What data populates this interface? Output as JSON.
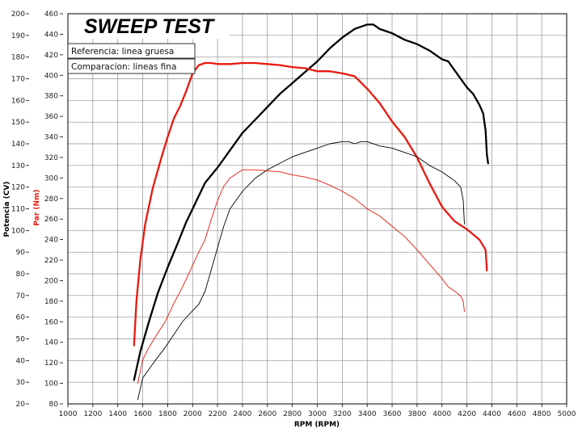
{
  "chart_data": {
    "type": "line",
    "title": "SWEEP TEST",
    "xlabel": "RPM (RPM)",
    "ylabel_left": "Potencia (CV)",
    "ylabel_right": "Par (Nm)",
    "xlim": [
      1000,
      5000
    ],
    "xticks": [
      "1000",
      "1200",
      "1400",
      "1600",
      "1800",
      "2000",
      "2200",
      "2400",
      "2600",
      "2800",
      "3000",
      "3200",
      "3400",
      "3600",
      "3800",
      "4000",
      "4200",
      "4400",
      "4600",
      "4800",
      "5000"
    ],
    "ylim_left": [
      20,
      200
    ],
    "yticks_left": [
      "20",
      "30",
      "40",
      "50",
      "60",
      "70",
      "80",
      "90",
      "100",
      "110",
      "120",
      "130",
      "140",
      "150",
      "160",
      "170",
      "180",
      "190",
      "200"
    ],
    "ylim_right": [
      80,
      460
    ],
    "yticks_right": [
      "80",
      "100",
      "120",
      "140",
      "160",
      "180",
      "200",
      "220",
      "240",
      "260",
      "280",
      "300",
      "320",
      "340",
      "360",
      "380",
      "400",
      "420",
      "440",
      "460"
    ],
    "grid": true,
    "legend": [
      "Referencia: linea gruesa",
      "Comparacion: lineas fina"
    ],
    "colors": {
      "power": "#000000",
      "torque": "#e8190f"
    },
    "series": [
      {
        "name": "Referencia: linea gruesa",
        "quantity": "power",
        "axis": "left",
        "width": "thick",
        "x": [
          1530,
          1580,
          1650,
          1720,
          1800,
          1880,
          1950,
          2000,
          2050,
          2100,
          2200,
          2300,
          2400,
          2500,
          2600,
          2700,
          2800,
          2900,
          3000,
          3100,
          3200,
          3300,
          3350,
          3400,
          3450,
          3500,
          3550,
          3600,
          3700,
          3800,
          3900,
          4000,
          4050,
          4100,
          4150,
          4200,
          4250,
          4300,
          4330,
          4350,
          4360,
          4370
        ],
        "y": [
          31,
          44,
          58,
          71,
          83,
          94,
          104,
          110,
          116,
          122,
          129,
          137,
          145,
          151,
          157,
          163,
          168,
          173,
          178,
          184,
          189,
          193,
          194,
          195,
          195,
          193,
          192,
          191,
          188,
          186,
          183,
          179,
          178,
          174,
          170,
          166,
          163,
          158,
          154,
          146,
          135,
          131
        ]
      },
      {
        "name": "Referencia: linea gruesa",
        "quantity": "torque",
        "axis": "right",
        "width": "thick",
        "x": [
          1530,
          1550,
          1580,
          1620,
          1680,
          1750,
          1800,
          1850,
          1900,
          1950,
          2000,
          2050,
          2100,
          2150,
          2200,
          2300,
          2400,
          2500,
          2600,
          2700,
          2800,
          2900,
          3000,
          3100,
          3200,
          3300,
          3400,
          3500,
          3600,
          3700,
          3800,
          3900,
          4000,
          4100,
          4200,
          4300,
          4350,
          4360
        ],
        "y": [
          137,
          180,
          220,
          255,
          290,
          320,
          340,
          358,
          370,
          385,
          402,
          410,
          412,
          412,
          411,
          411,
          412,
          412,
          411,
          410,
          408,
          407,
          404,
          404,
          402,
          399,
          387,
          373,
          355,
          340,
          320,
          295,
          272,
          258,
          250,
          240,
          230,
          210
        ]
      },
      {
        "name": "Comparacion: lineas fina",
        "quantity": "power",
        "axis": "left",
        "width": "thin",
        "x": [
          1560,
          1600,
          1650,
          1700,
          1780,
          1850,
          1920,
          2000,
          2050,
          2100,
          2150,
          2200,
          2250,
          2300,
          2400,
          2500,
          2600,
          2700,
          2800,
          2900,
          3000,
          3100,
          3200,
          3250,
          3300,
          3350,
          3400,
          3500,
          3600,
          3700,
          3800,
          3900,
          4000,
          4050,
          4100,
          4150,
          4170,
          4180
        ],
        "y": [
          22,
          32,
          36,
          40,
          46,
          52,
          58,
          63,
          66,
          72,
          82,
          92,
          102,
          110,
          118,
          124,
          128,
          131,
          134,
          136,
          138,
          140,
          141,
          141,
          140,
          141,
          141,
          139,
          138,
          136,
          134,
          130,
          127,
          125,
          123,
          120,
          114,
          103
        ]
      },
      {
        "name": "Comparacion: lineas fina",
        "quantity": "torque",
        "axis": "right",
        "width": "thin",
        "x": [
          1560,
          1600,
          1650,
          1700,
          1780,
          1850,
          1920,
          2000,
          2050,
          2100,
          2150,
          2200,
          2250,
          2300,
          2400,
          2500,
          2600,
          2700,
          2800,
          2900,
          3000,
          3100,
          3200,
          3300,
          3400,
          3500,
          3600,
          3700,
          3800,
          3900,
          4000,
          4050,
          4100,
          4150,
          4170,
          4180
        ],
        "y": [
          100,
          123,
          135,
          145,
          160,
          178,
          194,
          215,
          228,
          240,
          260,
          278,
          292,
          300,
          308,
          308,
          307,
          306,
          303,
          301,
          298,
          293,
          287,
          280,
          270,
          263,
          253,
          243,
          230,
          216,
          202,
          194,
          190,
          185,
          180,
          170
        ]
      }
    ]
  }
}
